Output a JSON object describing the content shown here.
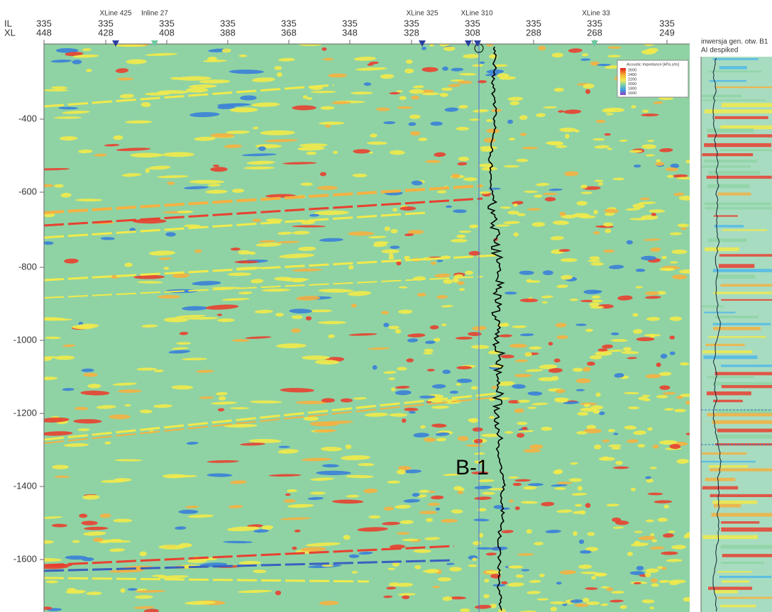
{
  "header": {
    "il_label": "IL",
    "xl_label": "XL"
  },
  "top_axis": [
    {
      "il": "335",
      "xl": "448"
    },
    {
      "il": "335",
      "xl": "428"
    },
    {
      "il": "335",
      "xl": "408"
    },
    {
      "il": "335",
      "xl": "388"
    },
    {
      "il": "335",
      "xl": "368"
    },
    {
      "il": "335",
      "xl": "348"
    },
    {
      "il": "335",
      "xl": "328"
    },
    {
      "il": "335",
      "xl": "308"
    },
    {
      "il": "335",
      "xl": "288"
    },
    {
      "il": "335",
      "xl": "268"
    },
    {
      "il": "335",
      "xl": "249"
    }
  ],
  "intersections": [
    "XLine 425",
    "Inline 27",
    "XLine 325",
    "XLine 310",
    "XLine 33"
  ],
  "depth_axis": [
    "-400",
    "-600",
    "-800",
    "-1000",
    "-1200",
    "-1400",
    "-1600"
  ],
  "legend": {
    "title": "Acoustic Impedance [kPa.s/m]",
    "ticks": [
      "2600",
      "2400",
      "2200",
      "2000",
      "1800",
      "1600"
    ]
  },
  "well": {
    "label": "B-1"
  },
  "side_panel": {
    "title": "inwersja gen. otw. B1",
    "subtitle": "AI despiked"
  }
}
